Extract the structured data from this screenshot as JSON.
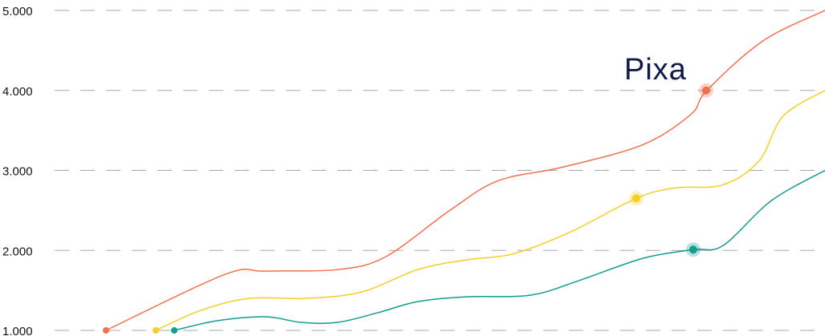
{
  "logo": {
    "text": "Pixa"
  },
  "chart_data": {
    "type": "line",
    "ylim": [
      1000,
      5000
    ],
    "yticks": [
      {
        "value": 1000,
        "label": "1.000"
      },
      {
        "value": 2000,
        "label": "2.000"
      },
      {
        "value": 3000,
        "label": "3.000"
      },
      {
        "value": 4000,
        "label": "4.000"
      },
      {
        "value": 5000,
        "label": "5.000"
      }
    ],
    "grid": true,
    "series": [
      {
        "color": "#f2714d",
        "points": [
          [
            132,
            1000
          ],
          [
            280,
            1700
          ],
          [
            330,
            1740
          ],
          [
            420,
            1760
          ],
          [
            480,
            1920
          ],
          [
            560,
            2500
          ],
          [
            620,
            2870
          ],
          [
            700,
            3040
          ],
          [
            800,
            3320
          ],
          [
            860,
            3700
          ],
          [
            880,
            4000
          ],
          [
            950,
            4620
          ],
          [
            1027,
            5000
          ]
        ],
        "markers": [
          {
            "x": 132,
            "y": 1000,
            "halo": false
          },
          {
            "x": 879,
            "y": 4000,
            "halo": true
          }
        ]
      },
      {
        "color": "#f6cf24",
        "points": [
          [
            194,
            1000
          ],
          [
            250,
            1250
          ],
          [
            310,
            1400
          ],
          [
            380,
            1400
          ],
          [
            450,
            1480
          ],
          [
            520,
            1760
          ],
          [
            580,
            1880
          ],
          [
            640,
            1960
          ],
          [
            710,
            2230
          ],
          [
            792,
            2650
          ],
          [
            840,
            2780
          ],
          [
            900,
            2820
          ],
          [
            945,
            3120
          ],
          [
            975,
            3680
          ],
          [
            1027,
            4000
          ]
        ],
        "markers": [
          {
            "x": 194,
            "y": 1000,
            "halo": false
          },
          {
            "x": 792,
            "y": 2650,
            "halo": true
          }
        ]
      },
      {
        "color": "#139c8f",
        "points": [
          [
            217,
            1000
          ],
          [
            270,
            1120
          ],
          [
            330,
            1170
          ],
          [
            375,
            1100
          ],
          [
            420,
            1100
          ],
          [
            470,
            1220
          ],
          [
            520,
            1360
          ],
          [
            580,
            1420
          ],
          [
            660,
            1440
          ],
          [
            720,
            1620
          ],
          [
            800,
            1900
          ],
          [
            863,
            2010
          ],
          [
            900,
            2060
          ],
          [
            960,
            2620
          ],
          [
            1027,
            3000
          ]
        ],
        "markers": [
          {
            "x": 217,
            "y": 1000,
            "halo": false
          },
          {
            "x": 863,
            "y": 2010,
            "halo": true
          }
        ]
      }
    ]
  }
}
